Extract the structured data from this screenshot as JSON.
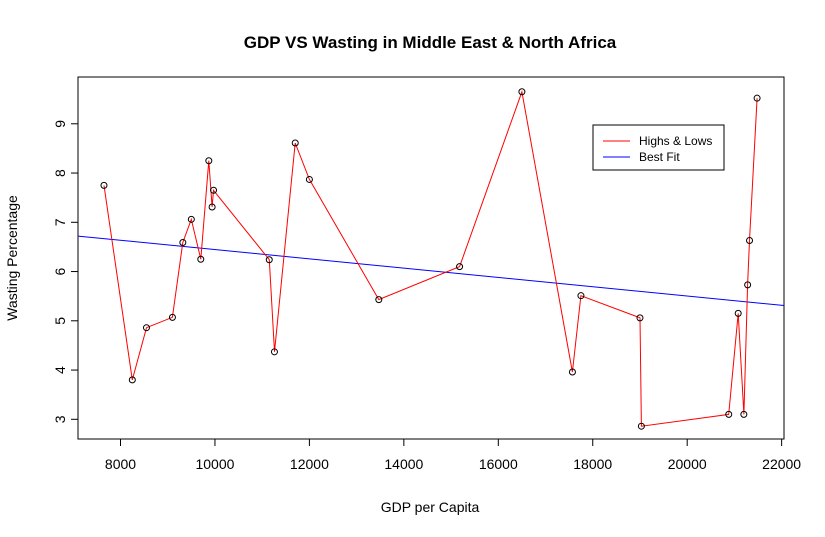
{
  "chart_data": {
    "type": "line",
    "title": "GDP VS Wasting in Middle East & North Africa",
    "xlabel": "GDP per Capita",
    "ylabel": "Wasting Percentage",
    "xlim": [
      7100,
      22050
    ],
    "ylim": [
      2.6,
      9.95
    ],
    "xticks": [
      8000,
      10000,
      12000,
      14000,
      16000,
      18000,
      20000,
      22000
    ],
    "yticks": [
      3,
      4,
      5,
      6,
      7,
      8,
      9
    ],
    "grid": false,
    "legend_position": "top-right",
    "series": [
      {
        "name": "Highs & Lows",
        "color": "#ff0000",
        "marker": "open-circle",
        "marker_color": "#000000",
        "x": [
          7650,
          8250,
          8550,
          9100,
          9320,
          9500,
          9700,
          9870,
          9940,
          9970,
          11150,
          11260,
          11700,
          12000,
          13470,
          15180,
          16500,
          17570,
          17750,
          19000,
          19030,
          20880,
          21080,
          21200,
          21280,
          21320,
          21480
        ],
        "y": [
          7.75,
          3.8,
          4.86,
          5.07,
          6.59,
          7.06,
          6.25,
          8.25,
          7.31,
          7.65,
          6.24,
          4.37,
          8.61,
          7.87,
          5.43,
          6.1,
          9.65,
          3.96,
          5.51,
          5.06,
          2.86,
          3.1,
          5.15,
          3.1,
          5.73,
          6.63,
          9.52
        ]
      },
      {
        "name": "Best Fit",
        "color": "#0000ff",
        "type": "line",
        "x": [
          7100,
          22050
        ],
        "y": [
          6.72,
          5.31
        ]
      }
    ]
  }
}
